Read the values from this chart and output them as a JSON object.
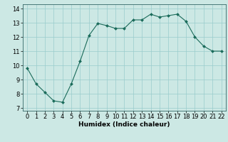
{
  "x": [
    0,
    1,
    2,
    3,
    4,
    5,
    6,
    7,
    8,
    9,
    10,
    11,
    12,
    13,
    14,
    15,
    16,
    17,
    18,
    19,
    20,
    21,
    22
  ],
  "y": [
    9.8,
    8.7,
    8.1,
    7.5,
    7.4,
    8.7,
    10.3,
    12.1,
    12.95,
    12.8,
    12.6,
    12.6,
    13.2,
    13.2,
    13.6,
    13.4,
    13.5,
    13.6,
    13.1,
    12.0,
    11.35,
    11.0,
    11.0
  ],
  "line_color": "#1a6b5a",
  "marker": "D",
  "marker_size": 2.0,
  "bg_color": "#cce8e4",
  "grid_color": "#99cccc",
  "xlabel": "Humidex (Indice chaleur)",
  "xlim": [
    -0.5,
    22.5
  ],
  "ylim": [
    6.8,
    14.3
  ],
  "yticks": [
    7,
    8,
    9,
    10,
    11,
    12,
    13,
    14
  ],
  "xticks": [
    0,
    1,
    2,
    3,
    4,
    5,
    6,
    7,
    8,
    9,
    10,
    11,
    12,
    13,
    14,
    15,
    16,
    17,
    18,
    19,
    20,
    21,
    22
  ],
  "xlabel_fontsize": 6.5,
  "tick_fontsize": 6.0
}
